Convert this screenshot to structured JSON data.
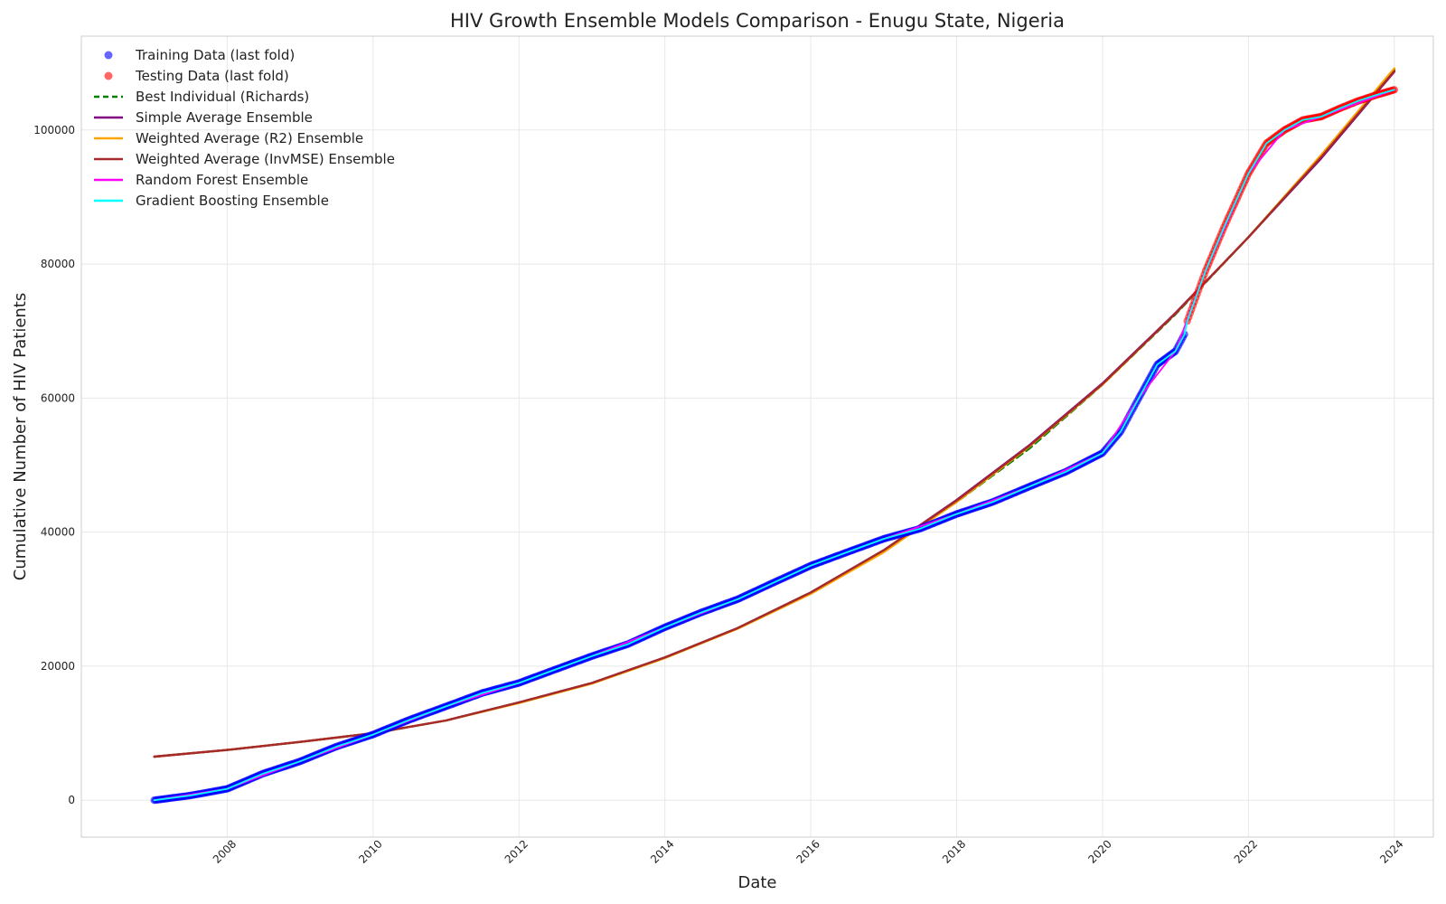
{
  "chart_data": {
    "type": "line",
    "title": "HIV Growth Ensemble Models Comparison - Enugu State, Nigeria",
    "xlabel": "Date",
    "ylabel": "Cumulative Number of HIV Patients",
    "xlim": [
      "2006-01-01",
      "2024-07-15"
    ],
    "ylim": [
      -5500,
      114000
    ],
    "x_ticks": [
      "2008",
      "2010",
      "2012",
      "2014",
      "2016",
      "2018",
      "2020",
      "2022",
      "2024"
    ],
    "y_ticks": [
      0,
      20000,
      40000,
      60000,
      80000,
      100000
    ],
    "grid": true,
    "legend_position": "top-left",
    "legend": [
      {
        "label": "Training Data (last fold)",
        "kind": "marker",
        "color": "#0000ff"
      },
      {
        "label": "Testing Data (last fold)",
        "kind": "marker",
        "color": "#ff0000"
      },
      {
        "label": "Best Individual (Richards)",
        "kind": "dashed",
        "color": "#008000"
      },
      {
        "label": "Simple Average Ensemble",
        "kind": "line",
        "color": "#800080"
      },
      {
        "label": "Weighted Average (R2) Ensemble",
        "kind": "line",
        "color": "#ffa500"
      },
      {
        "label": "Weighted Average (InvMSE) Ensemble",
        "kind": "line",
        "color": "#a52a2a"
      },
      {
        "label": "Random Forest Ensemble",
        "kind": "line",
        "color": "#ff00ff"
      },
      {
        "label": "Gradient Boosting Ensemble",
        "kind": "line",
        "color": "#00ffff"
      }
    ],
    "series": [
      {
        "name": "Training Data (last fold)",
        "style": "marker",
        "color": "#0000ff",
        "x": [
          "2007-01-01",
          "2007-07-01",
          "2008-01-01",
          "2008-07-01",
          "2009-01-01",
          "2009-07-01",
          "2010-01-01",
          "2010-07-01",
          "2011-01-01",
          "2011-07-01",
          "2012-01-01",
          "2012-07-01",
          "2013-01-01",
          "2013-07-01",
          "2014-01-01",
          "2014-07-01",
          "2015-01-01",
          "2015-07-01",
          "2016-01-01",
          "2016-07-01",
          "2017-01-01",
          "2017-07-01",
          "2018-01-01",
          "2018-07-01",
          "2019-01-01",
          "2019-07-01",
          "2020-01-01",
          "2020-04-01",
          "2020-07-01",
          "2020-10-01",
          "2021-01-01",
          "2021-02-15"
        ],
        "y": [
          0,
          700,
          1700,
          4000,
          5800,
          8000,
          9800,
          12000,
          14000,
          16000,
          17500,
          19500,
          21500,
          23300,
          25800,
          28000,
          30000,
          32500,
          35000,
          37000,
          39000,
          40500,
          42700,
          44500,
          46800,
          49000,
          51800,
          55000,
          60000,
          65000,
          67000,
          69500
        ]
      },
      {
        "name": "Testing Data (last fold)",
        "style": "marker",
        "color": "#ff0000",
        "x": [
          "2021-03-01",
          "2021-06-01",
          "2021-09-01",
          "2022-01-01",
          "2022-04-01",
          "2022-07-01",
          "2022-10-01",
          "2023-01-01",
          "2023-04-01",
          "2023-07-01",
          "2023-10-01",
          "2024-01-01"
        ],
        "y": [
          71500,
          79000,
          85500,
          93500,
          98000,
          100000,
          101500,
          102000,
          103200,
          104300,
          105200,
          106000
        ]
      },
      {
        "name": "Best Individual (Richards)",
        "style": "dashed",
        "color": "#008000",
        "x": [
          "2007-01-01",
          "2008-01-01",
          "2009-01-01",
          "2010-01-01",
          "2011-01-01",
          "2012-01-01",
          "2013-01-01",
          "2014-01-01",
          "2015-01-01",
          "2016-01-01",
          "2017-01-01",
          "2018-01-01",
          "2019-01-01",
          "2020-01-01",
          "2021-01-01",
          "2022-01-01",
          "2023-01-01",
          "2024-01-01"
        ],
        "y": [
          6500,
          7500,
          8700,
          10000,
          11900,
          14600,
          17500,
          21300,
          25700,
          31000,
          37200,
          44500,
          52500,
          62000,
          72500,
          84000,
          96000,
          109000
        ]
      },
      {
        "name": "Simple Average Ensemble",
        "style": "line",
        "color": "#800080",
        "x": [
          "2007-01-01",
          "2008-01-01",
          "2009-01-01",
          "2010-01-01",
          "2011-01-01",
          "2012-01-01",
          "2013-01-01",
          "2014-01-01",
          "2015-01-01",
          "2016-01-01",
          "2017-01-01",
          "2018-01-01",
          "2019-01-01",
          "2020-01-01",
          "2021-01-01",
          "2022-01-01",
          "2023-01-01",
          "2024-01-01"
        ],
        "y": [
          6500,
          7500,
          8700,
          10000,
          11900,
          14600,
          17500,
          21300,
          25700,
          31000,
          37300,
          44800,
          53000,
          62200,
          72700,
          84000,
          95800,
          108700
        ]
      },
      {
        "name": "Weighted Average (R2) Ensemble",
        "style": "line",
        "color": "#ffa500",
        "x": [
          "2007-01-01",
          "2008-01-01",
          "2009-01-01",
          "2010-01-01",
          "2011-01-01",
          "2012-01-01",
          "2013-01-01",
          "2014-01-01",
          "2015-01-01",
          "2016-01-01",
          "2017-01-01",
          "2018-01-01",
          "2019-01-01",
          "2020-01-01",
          "2021-01-01",
          "2022-01-01",
          "2023-01-01",
          "2024-01-01"
        ],
        "y": [
          6500,
          7500,
          8700,
          10000,
          11900,
          14500,
          17400,
          21200,
          25600,
          30800,
          37000,
          44500,
          52800,
          62000,
          72600,
          84000,
          96300,
          109200
        ]
      },
      {
        "name": "Weighted Average (InvMSE) Ensemble",
        "style": "line",
        "color": "#a52a2a",
        "x": [
          "2007-01-01",
          "2008-01-01",
          "2009-01-01",
          "2010-01-01",
          "2011-01-01",
          "2012-01-01",
          "2013-01-01",
          "2014-01-01",
          "2015-01-01",
          "2016-01-01",
          "2017-01-01",
          "2018-01-01",
          "2019-01-01",
          "2020-01-01",
          "2021-01-01",
          "2022-01-01",
          "2023-01-01",
          "2024-01-01"
        ],
        "y": [
          6500,
          7500,
          8700,
          10000,
          11900,
          14600,
          17500,
          21300,
          25700,
          31000,
          37300,
          44700,
          52900,
          62100,
          72600,
          84000,
          96000,
          108800
        ]
      },
      {
        "name": "Random Forest Ensemble",
        "style": "line",
        "color": "#ff00ff",
        "x": [
          "2007-01-01",
          "2008-01-01",
          "2009-01-01",
          "2010-01-01",
          "2011-01-01",
          "2012-01-01",
          "2013-01-01",
          "2014-01-01",
          "2015-01-01",
          "2016-01-01",
          "2017-01-01",
          "2018-01-01",
          "2019-01-01",
          "2020-01-01",
          "2020-07-01",
          "2021-01-01",
          "2021-06-01",
          "2022-01-01",
          "2022-07-01",
          "2023-01-01",
          "2024-01-01"
        ],
        "y": [
          0,
          1700,
          5800,
          9800,
          14000,
          17500,
          21500,
          25800,
          30000,
          35000,
          39000,
          42700,
          46800,
          51800,
          60000,
          67000,
          79000,
          93500,
          100000,
          102000,
          106000
        ]
      },
      {
        "name": "Gradient Boosting Ensemble",
        "style": "line",
        "color": "#00ffff",
        "x": [
          "2007-01-01",
          "2007-07-01",
          "2008-01-01",
          "2008-07-01",
          "2009-01-01",
          "2009-07-01",
          "2010-01-01",
          "2010-07-01",
          "2011-01-01",
          "2011-07-01",
          "2012-01-01",
          "2012-07-01",
          "2013-01-01",
          "2013-07-01",
          "2014-01-01",
          "2014-07-01",
          "2015-01-01",
          "2015-07-01",
          "2016-01-01",
          "2016-07-01",
          "2017-01-01",
          "2017-07-01",
          "2018-01-01",
          "2018-07-01",
          "2019-01-01",
          "2019-07-01",
          "2020-01-01",
          "2020-04-01",
          "2020-07-01",
          "2020-10-01",
          "2021-01-01",
          "2021-02-15",
          "2021-03-01",
          "2021-06-01",
          "2021-09-01",
          "2022-01-01",
          "2022-04-01",
          "2022-07-01",
          "2022-10-01",
          "2023-01-01",
          "2023-04-01",
          "2023-07-01",
          "2023-10-01",
          "2024-01-01"
        ],
        "y": [
          0,
          700,
          1700,
          4000,
          5800,
          8000,
          9800,
          12000,
          14000,
          16000,
          17500,
          19500,
          21500,
          23300,
          25800,
          28000,
          30000,
          32500,
          35000,
          37000,
          39000,
          40500,
          42700,
          44500,
          46800,
          49000,
          51800,
          55000,
          60000,
          65000,
          67000,
          69500,
          71500,
          79000,
          85500,
          93500,
          98000,
          100000,
          101500,
          102000,
          103200,
          104300,
          105200,
          106000
        ]
      }
    ]
  }
}
